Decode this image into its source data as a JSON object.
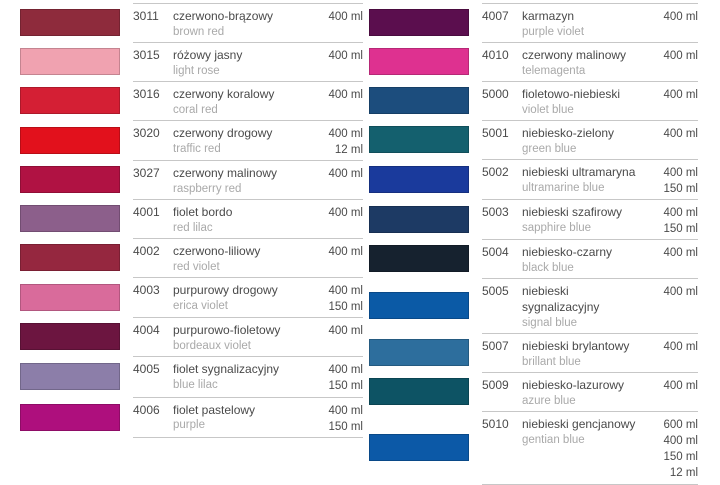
{
  "page": {
    "background": "#ffffff",
    "divider_color": "#c7c7c7",
    "text_primary": "#4a4a4a",
    "text_secondary": "#a9a9a9"
  },
  "columns": [
    {
      "name": "left",
      "rows": [
        {
          "code": "3011",
          "name_pl": "czerwono-brązowy",
          "name_en": "brown red",
          "volumes": [
            "400 ml"
          ],
          "swatch_hex": "#8e2b3c"
        },
        {
          "code": "3015",
          "name_pl": "różowy jasny",
          "name_en": "light rose",
          "volumes": [
            "400 ml"
          ],
          "swatch_hex": "#f0a2b0"
        },
        {
          "code": "3016",
          "name_pl": "czerwony koralowy",
          "name_en": "coral red",
          "volumes": [
            "400 ml"
          ],
          "swatch_hex": "#d41f34"
        },
        {
          "code": "3020",
          "name_pl": "czerwony drogowy",
          "name_en": "traffic red",
          "volumes": [
            "400 ml",
            "12 ml"
          ],
          "swatch_hex": "#e2111c"
        },
        {
          "code": "3027",
          "name_pl": "czerwony malinowy",
          "name_en": "raspberry red",
          "volumes": [
            "400 ml"
          ],
          "swatch_hex": "#b01243"
        },
        {
          "code": "4001",
          "name_pl": "fiolet bordo",
          "name_en": "red lilac",
          "volumes": [
            "400 ml"
          ],
          "swatch_hex": "#8c5f8b"
        },
        {
          "code": "4002",
          "name_pl": "czerwono-liliowy",
          "name_en": "red violet",
          "volumes": [
            "400 ml"
          ],
          "swatch_hex": "#95273f"
        },
        {
          "code": "4003",
          "name_pl": "purpurowy drogowy",
          "name_en": "erica violet",
          "volumes": [
            "400 ml",
            "150 ml"
          ],
          "swatch_hex": "#d96b9b"
        },
        {
          "code": "4004",
          "name_pl": "purpurowo-fioletowy",
          "name_en": "bordeaux violet",
          "volumes": [
            "400 ml"
          ],
          "swatch_hex": "#6c1540"
        },
        {
          "code": "4005",
          "name_pl": "fiolet sygnalizacyjny",
          "name_en": "blue lilac",
          "volumes": [
            "400 ml",
            "150 ml"
          ],
          "swatch_hex": "#8c7ea9"
        },
        {
          "code": "4006",
          "name_pl": "fiolet pastelowy",
          "name_en": "purple",
          "volumes": [
            "400 ml",
            "150 ml"
          ],
          "swatch_hex": "#ae0f7d"
        }
      ]
    },
    {
      "name": "right",
      "rows": [
        {
          "code": "4007",
          "name_pl": "karmazyn",
          "name_en": "purple violet",
          "volumes": [
            "400 ml"
          ],
          "swatch_hex": "#5b0e4e"
        },
        {
          "code": "4010",
          "name_pl": "czerwony malinowy",
          "name_en": "telemagenta",
          "volumes": [
            "400 ml"
          ],
          "swatch_hex": "#de3190"
        },
        {
          "code": "5000",
          "name_pl": "fioletowo-niebieski",
          "name_en": "violet blue",
          "volumes": [
            "400 ml"
          ],
          "swatch_hex": "#1c4d7d"
        },
        {
          "code": "5001",
          "name_pl": "niebiesko-zielony",
          "name_en": "green blue",
          "volumes": [
            "400 ml"
          ],
          "swatch_hex": "#14606e"
        },
        {
          "code": "5002",
          "name_pl": "niebieski ultramaryna",
          "name_en": "ultramarine blue",
          "volumes": [
            "400 ml",
            "150 ml"
          ],
          "swatch_hex": "#1a3a9c"
        },
        {
          "code": "5003",
          "name_pl": "niebieski szafirowy",
          "name_en": "sapphire blue",
          "volumes": [
            "400 ml",
            "150 ml"
          ],
          "swatch_hex": "#1d3a64"
        },
        {
          "code": "5004",
          "name_pl": "niebiesko-czarny",
          "name_en": "black blue",
          "volumes": [
            "400 ml"
          ],
          "swatch_hex": "#16222f"
        },
        {
          "code": "5005",
          "name_pl": "niebieski sygnalizacyjny",
          "name_en": "signal blue",
          "volumes": [
            "400 ml"
          ],
          "swatch_hex": "#0b5aa6"
        },
        {
          "code": "5007",
          "name_pl": "niebieski brylantowy",
          "name_en": "brillant blue",
          "volumes": [
            "400 ml"
          ],
          "swatch_hex": "#2d6e9d"
        },
        {
          "code": "5009",
          "name_pl": "niebiesko-lazurowy",
          "name_en": "azure blue",
          "volumes": [
            "400 ml"
          ],
          "swatch_hex": "#0d5364"
        },
        {
          "code": "5010",
          "name_pl": "niebieski gencjanowy",
          "name_en": "gentian blue",
          "volumes": [
            "600 ml",
            "400 ml",
            "150 ml",
            "12 ml"
          ],
          "swatch_hex": "#0c59a7"
        }
      ]
    }
  ]
}
